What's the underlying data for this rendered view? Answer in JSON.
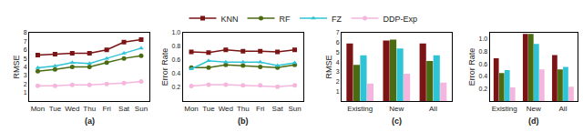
{
  "chart_data": [
    {
      "type": "line",
      "title": "(a)",
      "y_label": "RMSE",
      "categories": [
        "Mon",
        "Tue",
        "Wed",
        "Thu",
        "Fri",
        "Sat",
        "Sun"
      ],
      "ylim": [
        0,
        8
      ],
      "yticks": [
        1,
        2,
        3,
        4,
        5,
        6,
        7,
        8
      ],
      "grid": false,
      "series": [
        {
          "name": "KNN",
          "color": "#7b1414",
          "marker": "square",
          "values": [
            5.4,
            5.5,
            5.6,
            5.6,
            6.0,
            6.9,
            7.2
          ]
        },
        {
          "name": "RF",
          "color": "#4a6b12",
          "marker": "circle",
          "values": [
            3.5,
            3.7,
            4.0,
            4.0,
            4.5,
            5.0,
            5.3
          ]
        },
        {
          "name": "FZ",
          "color": "#2ec4d6",
          "marker": "triangle-up",
          "values": [
            3.9,
            4.1,
            4.5,
            4.4,
            5.0,
            5.6,
            6.2
          ]
        },
        {
          "name": "DDP-Exp",
          "color": "#f4b6dc",
          "marker": "circle",
          "values": [
            1.8,
            1.8,
            1.9,
            1.9,
            2.0,
            2.1,
            2.3
          ]
        }
      ]
    },
    {
      "type": "line",
      "title": "(b)",
      "y_label": "Error Rate",
      "categories": [
        "Mon",
        "Tue",
        "Wed",
        "Thu",
        "Fri",
        "Sat",
        "Sun"
      ],
      "ylim": [
        0,
        1
      ],
      "yticks": [
        0.2,
        0.4,
        0.6,
        0.8,
        {
          "value": 1,
          "label": "1.0"
        }
      ],
      "grid": false,
      "series": [
        {
          "name": "KNN",
          "color": "#7b1414",
          "marker": "square",
          "values": [
            0.72,
            0.71,
            0.75,
            0.73,
            0.73,
            0.72,
            0.75
          ]
        },
        {
          "name": "RF",
          "color": "#4a6b12",
          "marker": "circle",
          "values": [
            0.49,
            0.49,
            0.53,
            0.52,
            0.5,
            0.49,
            0.53
          ]
        },
        {
          "name": "FZ",
          "color": "#2ec4d6",
          "marker": "triangle-up",
          "values": [
            0.47,
            0.59,
            0.57,
            0.57,
            0.57,
            0.52,
            0.56
          ]
        },
        {
          "name": "DDP-Exp",
          "color": "#f4b6dc",
          "marker": "circle",
          "values": [
            0.22,
            0.24,
            0.24,
            0.23,
            0.23,
            0.21,
            0.23
          ]
        }
      ]
    },
    {
      "type": "bar",
      "title": "(c)",
      "y_label": "RMSE",
      "categories": [
        "Existing",
        "New",
        "All"
      ],
      "ylim": [
        0,
        7
      ],
      "yticks": [
        1,
        2,
        3,
        4,
        5,
        6,
        7
      ],
      "grid": false,
      "series": [
        {
          "name": "KNN",
          "color": "#7b1414",
          "values": [
            5.9,
            6.2,
            5.9
          ]
        },
        {
          "name": "RF",
          "color": "#4a6b12",
          "values": [
            3.7,
            6.3,
            4.1
          ]
        },
        {
          "name": "FZ",
          "color": "#2ec4d6",
          "values": [
            4.7,
            5.4,
            4.7
          ]
        },
        {
          "name": "DDP-Exp",
          "color": "#f4b6dc",
          "values": [
            1.8,
            2.8,
            1.9
          ]
        }
      ]
    },
    {
      "type": "bar",
      "title": "(d)",
      "y_label": "Error Rate",
      "categories": [
        "Existing",
        "New",
        "All"
      ],
      "ylim": [
        0,
        1.1
      ],
      "yticks": [
        0.2,
        0.4,
        0.6,
        0.8,
        {
          "value": 1,
          "label": "1.0"
        }
      ],
      "grid": false,
      "series": [
        {
          "name": "KNN",
          "color": "#7b1414",
          "values": [
            0.69,
            1.08,
            0.74
          ]
        },
        {
          "name": "RF",
          "color": "#4a6b12",
          "values": [
            0.45,
            1.08,
            0.51
          ]
        },
        {
          "name": "FZ",
          "color": "#2ec4d6",
          "values": [
            0.5,
            0.92,
            0.55
          ]
        },
        {
          "name": "DDP-Exp",
          "color": "#f4b6dc",
          "values": [
            0.22,
            0.51,
            0.23
          ]
        }
      ]
    }
  ]
}
